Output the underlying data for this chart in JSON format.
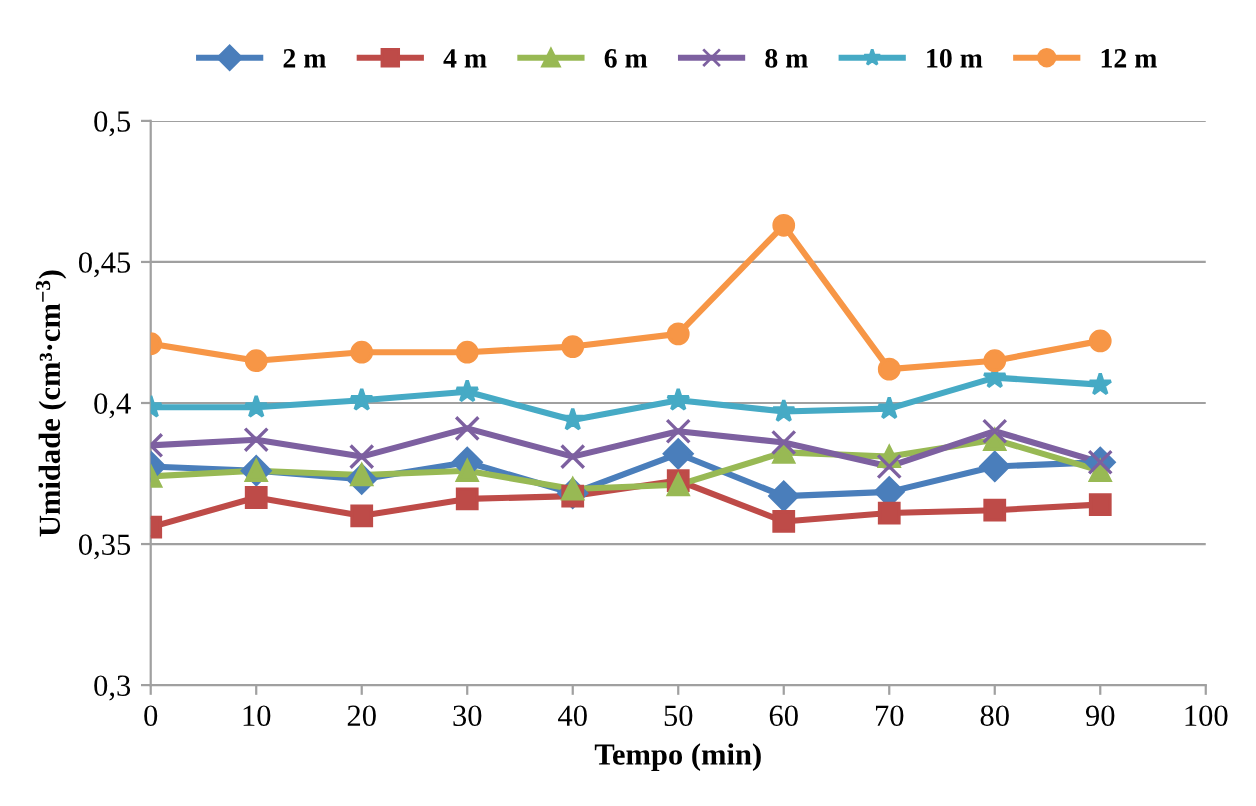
{
  "chart_data": {
    "type": "line",
    "xlabel": "Tempo (min)",
    "ylabel": "Umidade (cm³·cm$^{−3}$)",
    "x": [
      0,
      10,
      20,
      30,
      40,
      50,
      60,
      70,
      80,
      90
    ],
    "series": [
      {
        "name": "2 m",
        "color": "#4a7ebb",
        "marker": "diamond",
        "values": [
          0.3775,
          0.376,
          0.373,
          0.379,
          0.368,
          0.382,
          0.367,
          0.3685,
          0.3775,
          0.379
        ]
      },
      {
        "name": "4 m",
        "color": "#be4b48",
        "marker": "square",
        "values": [
          0.356,
          0.3665,
          0.36,
          0.366,
          0.367,
          0.3725,
          0.358,
          0.361,
          0.362,
          0.364
        ]
      },
      {
        "name": "6 m",
        "color": "#98b954",
        "marker": "triangle",
        "values": [
          0.374,
          0.376,
          0.3745,
          0.376,
          0.3695,
          0.371,
          0.3825,
          0.381,
          0.387,
          0.376
        ]
      },
      {
        "name": "8 m",
        "color": "#7d60a0",
        "marker": "cross",
        "values": [
          0.385,
          0.387,
          0.381,
          0.391,
          0.381,
          0.39,
          0.386,
          0.3775,
          0.39,
          0.379
        ]
      },
      {
        "name": "10 m",
        "color": "#46aac5",
        "marker": "star",
        "values": [
          0.3985,
          0.3985,
          0.401,
          0.404,
          0.394,
          0.401,
          0.397,
          0.398,
          0.409,
          0.4065
        ]
      },
      {
        "name": "12 m",
        "color": "#f79646",
        "marker": "circle",
        "values": [
          0.421,
          0.415,
          0.418,
          0.418,
          0.42,
          0.4245,
          0.463,
          0.412,
          0.415,
          0.422
        ]
      }
    ],
    "xlim": [
      0,
      100
    ],
    "xticks": [
      0,
      10,
      20,
      30,
      40,
      50,
      60,
      70,
      80,
      90,
      100
    ],
    "ylim": [
      0.3,
      0.5
    ],
    "yticks": [
      {
        "value": 0.3,
        "label": "0,3"
      },
      {
        "value": 0.35,
        "label": "0,35"
      },
      {
        "value": 0.4,
        "label": "0,4"
      },
      {
        "value": 0.45,
        "label": "0,45"
      },
      {
        "value": 0.5,
        "label": "0,5"
      }
    ],
    "grid": "y",
    "legend": "top",
    "line_style": "solid"
  }
}
